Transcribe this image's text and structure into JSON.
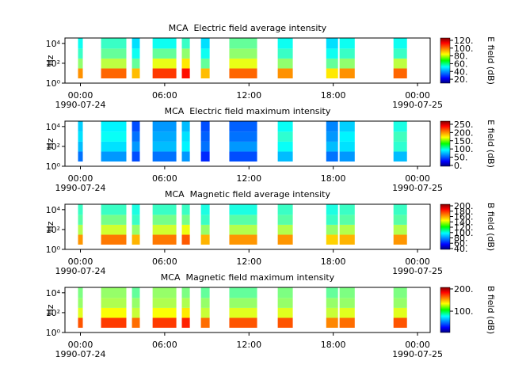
{
  "chart_data": [
    {
      "type": "spectrogram",
      "title": "MCA  Electric field average intensity",
      "ylabel": "Hz",
      "colorbar_label": "E field (dB)",
      "ylog": true,
      "ylim": [
        1,
        35000
      ],
      "yticks": [
        {
          "value": 1,
          "label": "10⁰"
        },
        {
          "value": 100,
          "label": "10²"
        },
        {
          "value": 10000,
          "label": "10⁴"
        }
      ],
      "xlim": [
        -1.1,
        24.9
      ],
      "xticks": [
        {
          "value": 0,
          "label": "00:00"
        },
        {
          "value": 6,
          "label": "06:00"
        },
        {
          "value": 12,
          "label": "12:00"
        },
        {
          "value": 18,
          "label": "18:00"
        },
        {
          "value": 24,
          "label": "00:00"
        }
      ],
      "x_dates": [
        {
          "value": 0,
          "label": "1990-07-24"
        },
        {
          "value": 24,
          "label": "1990-07-25"
        }
      ],
      "freq_bins": [
        3,
        30,
        300,
        3000,
        35000
      ],
      "segments": [
        [
          -0.17,
          0.17
        ],
        [
          1.47,
          3.27
        ],
        [
          3.67,
          4.23
        ],
        [
          5.14,
          6.83
        ],
        [
          7.22,
          7.79
        ],
        [
          8.58,
          9.2
        ],
        [
          10.6,
          12.58
        ],
        [
          14.05,
          15.12
        ],
        [
          17.5,
          18.34
        ],
        [
          18.45,
          19.53
        ],
        [
          22.29,
          23.25
        ]
      ],
      "values": [
        [
          95,
          70,
          60,
          55
        ],
        [
          100,
          75,
          65,
          60
        ],
        [
          90,
          65,
          55,
          50
        ],
        [
          105,
          80,
          65,
          55
        ],
        [
          110,
          85,
          70,
          60
        ],
        [
          90,
          65,
          55,
          50
        ],
        [
          100,
          80,
          70,
          65
        ],
        [
          95,
          70,
          60,
          55
        ],
        [
          85,
          65,
          55,
          50
        ],
        [
          95,
          70,
          60,
          55
        ],
        [
          100,
          75,
          60,
          55
        ]
      ],
      "clim": [
        10,
        126
      ],
      "cticks": [
        {
          "value": 120,
          "label": "120."
        },
        {
          "value": 100,
          "label": "100."
        },
        {
          "value": 80,
          "label": "80."
        },
        {
          "value": 60,
          "label": "60."
        },
        {
          "value": 40,
          "label": "40."
        },
        {
          "value": 20,
          "label": "20."
        }
      ]
    },
    {
      "type": "spectrogram",
      "title": "MCA  Electric field maximum intensity",
      "ylabel": "Hz",
      "colorbar_label": "E field (dB)",
      "ylog": true,
      "ylim": [
        1,
        35000
      ],
      "yticks": [
        {
          "value": 1,
          "label": "10⁰"
        },
        {
          "value": 100,
          "label": "10²"
        },
        {
          "value": 10000,
          "label": "10⁴"
        }
      ],
      "xlim": [
        -1.1,
        24.9
      ],
      "xticks": [
        {
          "value": 0,
          "label": "00:00"
        },
        {
          "value": 6,
          "label": "06:00"
        },
        {
          "value": 12,
          "label": "12:00"
        },
        {
          "value": 18,
          "label": "18:00"
        },
        {
          "value": 24,
          "label": "00:00"
        }
      ],
      "x_dates": [
        {
          "value": 0,
          "label": "1990-07-24"
        },
        {
          "value": 24,
          "label": "1990-07-25"
        }
      ],
      "freq_bins": [
        3,
        30,
        300,
        3000,
        35000
      ],
      "segments": [
        [
          -0.17,
          0.17
        ],
        [
          1.47,
          3.27
        ],
        [
          3.67,
          4.23
        ],
        [
          5.14,
          6.83
        ],
        [
          7.22,
          7.79
        ],
        [
          8.58,
          9.2
        ],
        [
          10.6,
          12.58
        ],
        [
          14.05,
          15.12
        ],
        [
          17.5,
          18.34
        ],
        [
          18.45,
          19.53
        ],
        [
          22.29,
          23.25
        ]
      ],
      "values": [
        [
          60,
          80,
          90,
          85
        ],
        [
          70,
          90,
          100,
          95
        ],
        [
          50,
          70,
          60,
          50
        ],
        [
          60,
          80,
          75,
          70
        ],
        [
          70,
          95,
          90,
          80
        ],
        [
          40,
          60,
          55,
          50
        ],
        [
          50,
          70,
          60,
          55
        ],
        [
          80,
          100,
          110,
          100
        ],
        [
          60,
          80,
          70,
          65
        ],
        [
          70,
          90,
          95,
          85
        ],
        [
          80,
          110,
          115,
          105
        ]
      ],
      "clim": [
        -5,
        269
      ],
      "cticks": [
        {
          "value": 250,
          "label": "250."
        },
        {
          "value": 200,
          "label": "200."
        },
        {
          "value": 150,
          "label": "150."
        },
        {
          "value": 100,
          "label": "100."
        },
        {
          "value": 50,
          "label": "50."
        },
        {
          "value": 0,
          "label": "0."
        }
      ]
    },
    {
      "type": "spectrogram",
      "title": "MCA  Magnetic field average intensity",
      "ylabel": "Hz",
      "colorbar_label": "B field (dB)",
      "ylog": true,
      "ylim": [
        1,
        35000
      ],
      "yticks": [
        {
          "value": 1,
          "label": "10⁰"
        },
        {
          "value": 100,
          "label": "10²"
        },
        {
          "value": 10000,
          "label": "10⁴"
        }
      ],
      "xlim": [
        -1.1,
        24.9
      ],
      "xticks": [
        {
          "value": 0,
          "label": "00:00"
        },
        {
          "value": 6,
          "label": "06:00"
        },
        {
          "value": 12,
          "label": "12:00"
        },
        {
          "value": 18,
          "label": "18:00"
        },
        {
          "value": 24,
          "label": "00:00"
        }
      ],
      "x_dates": [
        {
          "value": 0,
          "label": "1990-07-24"
        },
        {
          "value": 24,
          "label": "1990-07-25"
        }
      ],
      "freq_bins": [
        3,
        30,
        300,
        3000,
        35000
      ],
      "segments": [
        [
          -0.17,
          0.17
        ],
        [
          1.47,
          3.27
        ],
        [
          3.67,
          4.23
        ],
        [
          5.14,
          6.83
        ],
        [
          7.22,
          7.79
        ],
        [
          8.58,
          9.2
        ],
        [
          10.6,
          12.58
        ],
        [
          14.05,
          15.12
        ],
        [
          17.5,
          18.34
        ],
        [
          18.45,
          19.53
        ],
        [
          22.29,
          23.25
        ]
      ],
      "values": [
        [
          160,
          130,
          115,
          110
        ],
        [
          165,
          135,
          120,
          110
        ],
        [
          155,
          125,
          110,
          105
        ],
        [
          165,
          135,
          120,
          110
        ],
        [
          170,
          140,
          120,
          110
        ],
        [
          155,
          125,
          110,
          105
        ],
        [
          160,
          130,
          115,
          105
        ],
        [
          160,
          130,
          115,
          110
        ],
        [
          150,
          125,
          110,
          105
        ],
        [
          155,
          130,
          115,
          110
        ],
        [
          160,
          130,
          115,
          110
        ]
      ],
      "clim": [
        37,
        206
      ],
      "cticks": [
        {
          "value": 200,
          "label": "200."
        },
        {
          "value": 180,
          "label": "180."
        },
        {
          "value": 160,
          "label": "160."
        },
        {
          "value": 140,
          "label": "140."
        },
        {
          "value": 120,
          "label": "120."
        },
        {
          "value": 100,
          "label": "100."
        },
        {
          "value": 80,
          "label": "80."
        },
        {
          "value": 60,
          "label": "60."
        },
        {
          "value": 40,
          "label": "40."
        }
      ]
    },
    {
      "type": "spectrogram",
      "title": "MCA  Magnetic field maximum intensity",
      "ylabel": "Hz",
      "colorbar_label": "B field (dB)",
      "ylog": true,
      "ylim": [
        1,
        35000
      ],
      "yticks": [
        {
          "value": 1,
          "label": "10⁰"
        },
        {
          "value": 100,
          "label": "10²"
        },
        {
          "value": 10000,
          "label": "10⁴"
        }
      ],
      "xlim": [
        -1.1,
        24.9
      ],
      "xticks": [
        {
          "value": 0,
          "label": "00:00"
        },
        {
          "value": 6,
          "label": "06:00"
        },
        {
          "value": 12,
          "label": "12:00"
        },
        {
          "value": 18,
          "label": "18:00"
        },
        {
          "value": 24,
          "label": "00:00"
        }
      ],
      "x_dates": [
        {
          "value": 0,
          "label": "1990-07-24"
        },
        {
          "value": 24,
          "label": "1990-07-25"
        }
      ],
      "freq_bins": [
        3,
        30,
        300,
        3000,
        35000
      ],
      "segments": [
        [
          -0.17,
          0.17
        ],
        [
          1.47,
          3.27
        ],
        [
          3.67,
          4.23
        ],
        [
          5.14,
          6.83
        ],
        [
          7.22,
          7.79
        ],
        [
          8.58,
          9.2
        ],
        [
          10.6,
          12.58
        ],
        [
          14.05,
          15.12
        ],
        [
          17.5,
          18.34
        ],
        [
          18.45,
          19.53
        ],
        [
          22.29,
          23.25
        ]
      ],
      "values": [
        [
          165,
          125,
          110,
          105
        ],
        [
          170,
          130,
          115,
          110
        ],
        [
          160,
          120,
          110,
          100
        ],
        [
          170,
          130,
          115,
          110
        ],
        [
          175,
          135,
          115,
          105
        ],
        [
          160,
          120,
          110,
          100
        ],
        [
          165,
          125,
          110,
          100
        ],
        [
          165,
          125,
          110,
          105
        ],
        [
          155,
          120,
          110,
          100
        ],
        [
          160,
          125,
          110,
          105
        ],
        [
          165,
          125,
          110,
          105
        ]
      ],
      "clim": [
        4,
        207
      ],
      "cticks": [
        {
          "value": 200,
          "label": "200."
        },
        {
          "value": 100,
          "label": "100."
        }
      ]
    }
  ]
}
